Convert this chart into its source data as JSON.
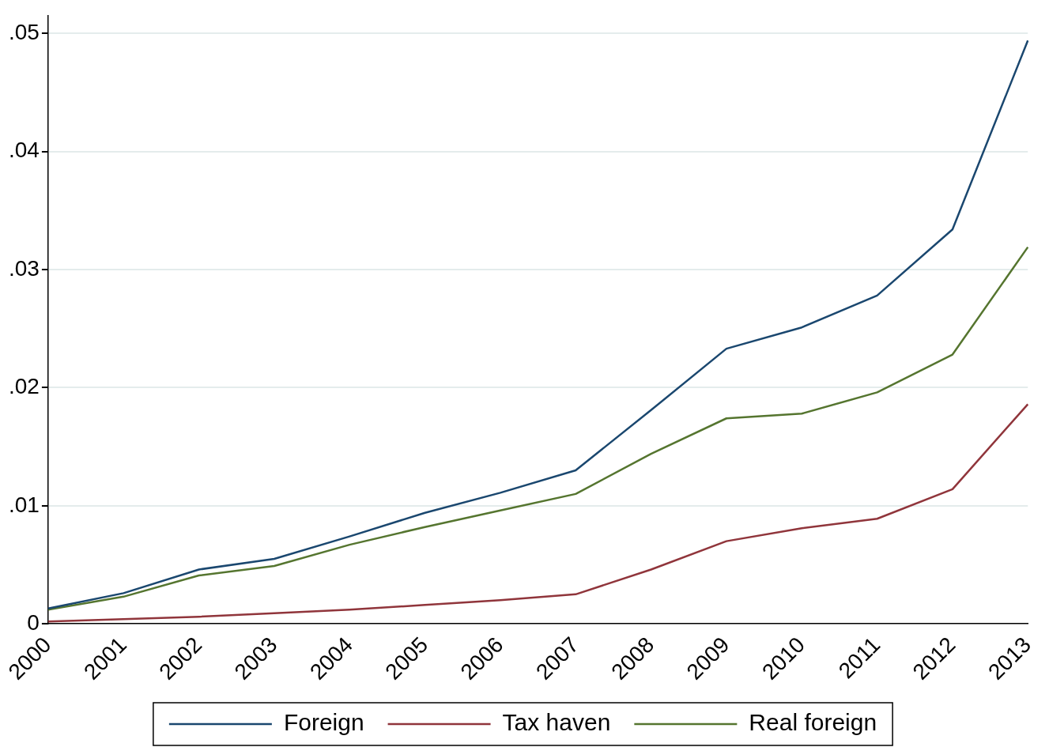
{
  "chart_data": {
    "type": "line",
    "categories": [
      "2000",
      "2001",
      "2002",
      "2003",
      "2004",
      "2005",
      "2006",
      "2007",
      "2008",
      "2009",
      "2010",
      "2011",
      "2012",
      "2013"
    ],
    "series": [
      {
        "name": "Foreign",
        "color": "#1a476f",
        "values": [
          0.0013,
          0.0026,
          0.0046,
          0.0055,
          0.0074,
          0.0094,
          0.0111,
          0.013,
          0.0181,
          0.0233,
          0.0251,
          0.0278,
          0.0334,
          0.0494
        ]
      },
      {
        "name": "Tax haven",
        "color": "#90353b",
        "values": [
          0.0002,
          0.0004,
          0.0006,
          0.0009,
          0.0012,
          0.0016,
          0.002,
          0.0025,
          0.0046,
          0.007,
          0.0081,
          0.0089,
          0.0114,
          0.0186
        ]
      },
      {
        "name": "Real foreign",
        "color": "#55752f",
        "values": [
          0.0012,
          0.0023,
          0.0041,
          0.0049,
          0.0067,
          0.0082,
          0.0096,
          0.011,
          0.0144,
          0.0174,
          0.0178,
          0.0196,
          0.0228,
          0.0319
        ]
      }
    ],
    "ylim": [
      0,
      0.0515
    ],
    "yticks": [
      {
        "value": 0,
        "label": "0"
      },
      {
        "value": 0.01,
        "label": ".01"
      },
      {
        "value": 0.02,
        "label": ".02"
      },
      {
        "value": 0.03,
        "label": ".03"
      },
      {
        "value": 0.04,
        "label": ".04"
      },
      {
        "value": 0.05,
        "label": ".05"
      }
    ],
    "grid": "y",
    "legend": "bottom",
    "marker": "none",
    "line_style": "solid"
  }
}
